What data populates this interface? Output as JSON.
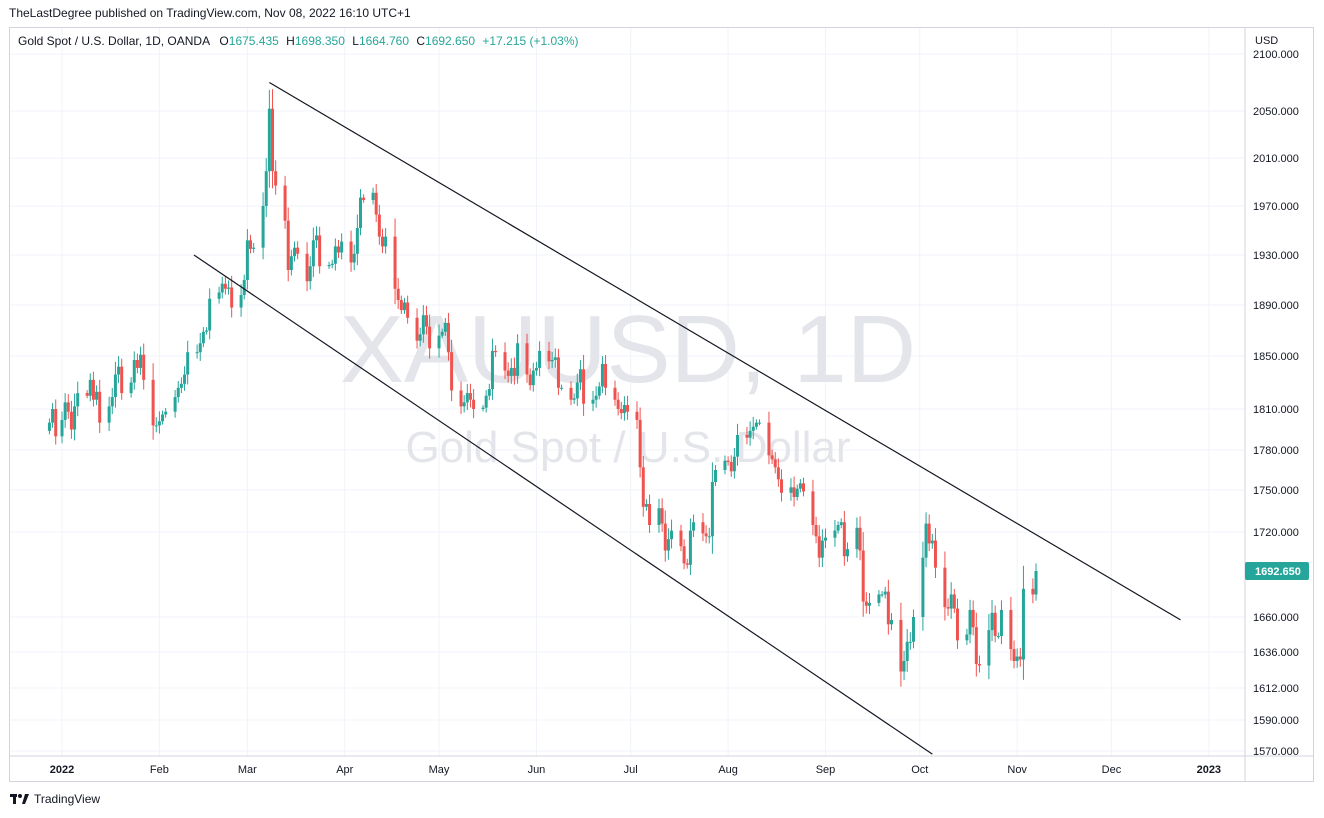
{
  "publisher": "TheLastDegree published on TradingView.com, Nov 08, 2022 16:10 UTC+1",
  "legend": {
    "symbol": "Gold Spot / U.S. Dollar, 1D, OANDA",
    "o_label": "O",
    "o_value": "1675.435",
    "h_label": "H",
    "h_value": "1698.350",
    "l_label": "L",
    "l_value": "1664.760",
    "c_label": "C",
    "c_value": "1692.650",
    "change": "+17.215 (+1.03%)"
  },
  "watermark": {
    "ticker": "XAUUSD, 1D",
    "name": "Gold Spot / U.S. Dollar"
  },
  "footer": {
    "brand": "TradingView"
  },
  "colors": {
    "up": "#26a69a",
    "down": "#ef5350",
    "price_tag": "#26a69a",
    "grid": "#f0f3fa",
    "trendline": "#131722"
  },
  "chart_data": {
    "type": "candlestick",
    "currency": "USD",
    "last_price": 1692.65,
    "y_ticks": [
      "2100.000",
      "2050.000",
      "2010.000",
      "1970.000",
      "1930.000",
      "1890.000",
      "1850.000",
      "1810.000",
      "1780.000",
      "1750.000",
      "1720.000",
      "1660.000",
      "1636.000",
      "1612.000",
      "1590.000",
      "1570.000"
    ],
    "x_labels": [
      {
        "label": "2022",
        "t": 0
      },
      {
        "label": "Feb",
        "t": 31
      },
      {
        "label": "Mar",
        "t": 59
      },
      {
        "label": "Apr",
        "t": 90
      },
      {
        "label": "May",
        "t": 120
      },
      {
        "label": "Jun",
        "t": 151
      },
      {
        "label": "Jul",
        "t": 181
      },
      {
        "label": "Aug",
        "t": 212
      },
      {
        "label": "Sep",
        "t": 243
      },
      {
        "label": "Oct",
        "t": 273
      },
      {
        "label": "Nov",
        "t": 304
      },
      {
        "label": "Dec",
        "t": 334
      },
      {
        "label": "2023",
        "t": 365
      }
    ],
    "trendlines": [
      {
        "name": "upper",
        "t1": 66,
        "p1": 2075,
        "t2": 356,
        "p2": 1658
      },
      {
        "name": "lower",
        "t1": 42,
        "p1": 1930,
        "t2": 277,
        "p2": 1568
      }
    ],
    "closes": [
      [
        -4,
        1800
      ],
      [
        -3,
        1810
      ],
      [
        -2,
        1790
      ],
      [
        0,
        1802
      ],
      [
        1,
        1815
      ],
      [
        2,
        1808
      ],
      [
        3,
        1795
      ],
      [
        4,
        1812
      ],
      [
        5,
        1822
      ],
      [
        8,
        1820
      ],
      [
        9,
        1832
      ],
      [
        10,
        1817
      ],
      [
        11,
        1823
      ],
      [
        12,
        1800
      ],
      [
        15,
        1812
      ],
      [
        16,
        1819
      ],
      [
        17,
        1836
      ],
      [
        18,
        1842
      ],
      [
        19,
        1822
      ],
      [
        22,
        1830
      ],
      [
        23,
        1847
      ],
      [
        24,
        1841
      ],
      [
        25,
        1851
      ],
      [
        26,
        1832
      ],
      [
        29,
        1798
      ],
      [
        30,
        1798
      ],
      [
        31,
        1801
      ],
      [
        32,
        1806
      ],
      [
        33,
        1808
      ],
      [
        36,
        1819
      ],
      [
        37,
        1826
      ],
      [
        38,
        1829
      ],
      [
        39,
        1836
      ],
      [
        40,
        1853
      ],
      [
        43,
        1853
      ],
      [
        44,
        1860
      ],
      [
        45,
        1869
      ],
      [
        46,
        1870
      ],
      [
        47,
        1895
      ],
      [
        50,
        1900
      ],
      [
        51,
        1907
      ],
      [
        52,
        1903
      ],
      [
        53,
        1904
      ],
      [
        54,
        1888
      ],
      [
        57,
        1898
      ],
      [
        58,
        1910
      ],
      [
        59,
        1942
      ],
      [
        60,
        1935
      ],
      [
        61,
        1936
      ],
      [
        64,
        1970
      ],
      [
        65,
        1999
      ],
      [
        66,
        2052
      ],
      [
        67,
        1999
      ],
      [
        68,
        1987
      ],
      [
        71,
        1958
      ],
      [
        72,
        1918
      ],
      [
        73,
        1929
      ],
      [
        74,
        1936
      ],
      [
        75,
        1931
      ],
      [
        78,
        1909
      ],
      [
        79,
        1921
      ],
      [
        80,
        1942
      ],
      [
        81,
        1946
      ],
      [
        82,
        1921
      ],
      [
        85,
        1922
      ],
      [
        86,
        1923
      ],
      [
        87,
        1937
      ],
      [
        88,
        1932
      ],
      [
        89,
        1941
      ],
      [
        92,
        1924
      ],
      [
        93,
        1931
      ],
      [
        94,
        1952
      ],
      [
        95,
        1977
      ],
      [
        96,
        1975
      ],
      [
        99,
        1981
      ],
      [
        100,
        1963
      ],
      [
        101,
        1945
      ],
      [
        102,
        1937
      ],
      [
        103,
        1945
      ],
      [
        106,
        1903
      ],
      [
        107,
        1894
      ],
      [
        108,
        1886
      ],
      [
        109,
        1892
      ],
      [
        110,
        1880
      ],
      [
        113,
        1862
      ],
      [
        114,
        1867
      ],
      [
        115,
        1882
      ],
      [
        116,
        1873
      ],
      [
        117,
        1856
      ],
      [
        120,
        1866
      ],
      [
        121,
        1869
      ],
      [
        122,
        1876
      ],
      [
        123,
        1853
      ],
      [
        124,
        1824
      ],
      [
        127,
        1812
      ],
      [
        128,
        1815
      ],
      [
        129,
        1822
      ],
      [
        130,
        1817
      ],
      [
        131,
        1810
      ],
      [
        134,
        1811
      ],
      [
        135,
        1820
      ],
      [
        136,
        1825
      ],
      [
        137,
        1854
      ],
      [
        138,
        1853
      ],
      [
        141,
        1839
      ],
      [
        142,
        1835
      ],
      [
        143,
        1841
      ],
      [
        144,
        1835
      ],
      [
        145,
        1860
      ],
      [
        148,
        1836
      ],
      [
        149,
        1828
      ],
      [
        150,
        1839
      ],
      [
        151,
        1841
      ],
      [
        152,
        1854
      ],
      [
        155,
        1846
      ],
      [
        156,
        1847
      ],
      [
        157,
        1849
      ],
      [
        158,
        1826
      ],
      [
        159,
        1826
      ],
      [
        162,
        1817
      ],
      [
        163,
        1818
      ],
      [
        164,
        1830
      ],
      [
        165,
        1840
      ],
      [
        166,
        1814
      ],
      [
        169,
        1817
      ],
      [
        170,
        1820
      ],
      [
        171,
        1827
      ],
      [
        172,
        1844
      ],
      [
        173,
        1826
      ],
      [
        176,
        1817
      ],
      [
        177,
        1810
      ],
      [
        178,
        1807
      ],
      [
        179,
        1813
      ],
      [
        180,
        1808
      ],
      [
        183,
        1802
      ],
      [
        184,
        1767
      ],
      [
        185,
        1738
      ],
      [
        186,
        1740
      ],
      [
        187,
        1725
      ],
      [
        190,
        1737
      ],
      [
        191,
        1726
      ],
      [
        192,
        1707
      ],
      [
        193,
        1715
      ],
      [
        194,
        1721
      ],
      [
        197,
        1710
      ],
      [
        198,
        1698
      ],
      [
        199,
        1697
      ],
      [
        200,
        1721
      ],
      [
        201,
        1727
      ],
      [
        204,
        1719
      ],
      [
        205,
        1717
      ],
      [
        206,
        1717
      ],
      [
        207,
        1756
      ],
      [
        208,
        1765
      ],
      [
        211,
        1772
      ],
      [
        212,
        1771
      ],
      [
        213,
        1764
      ],
      [
        214,
        1775
      ],
      [
        215,
        1791
      ],
      [
        218,
        1789
      ],
      [
        219,
        1794
      ],
      [
        220,
        1797
      ],
      [
        221,
        1800
      ],
      [
        222,
        1800
      ],
      [
        225,
        1776
      ],
      [
        226,
        1773
      ],
      [
        227,
        1767
      ],
      [
        228,
        1758
      ],
      [
        229,
        1748
      ],
      [
        232,
        1752
      ],
      [
        233,
        1745
      ],
      [
        234,
        1751
      ],
      [
        235,
        1755
      ],
      [
        236,
        1749
      ],
      [
        239,
        1725
      ],
      [
        240,
        1717
      ],
      [
        241,
        1702
      ],
      [
        242,
        1714
      ],
      [
        243,
        1716
      ],
      [
        246,
        1721
      ],
      [
        247,
        1725
      ],
      [
        248,
        1727
      ],
      [
        249,
        1703
      ],
      [
        250,
        1708
      ],
      [
        253,
        1723
      ],
      [
        254,
        1707
      ],
      [
        255,
        1671
      ],
      [
        256,
        1668
      ],
      [
        257,
        1670
      ],
      [
        260,
        1676
      ],
      [
        261,
        1676
      ],
      [
        262,
        1678
      ],
      [
        263,
        1655
      ],
      [
        264,
        1658
      ],
      [
        267,
        1623
      ],
      [
        268,
        1630
      ],
      [
        269,
        1643
      ],
      [
        270,
        1643
      ],
      [
        271,
        1660
      ],
      [
        274,
        1702
      ],
      [
        275,
        1726
      ],
      [
        276,
        1712
      ],
      [
        277,
        1714
      ],
      [
        278,
        1695
      ],
      [
        281,
        1667
      ],
      [
        282,
        1666
      ],
      [
        283,
        1676
      ],
      [
        284,
        1666
      ],
      [
        285,
        1644
      ],
      [
        288,
        1648
      ],
      [
        289,
        1665
      ],
      [
        290,
        1653
      ],
      [
        291,
        1628
      ],
      [
        292,
        1627
      ],
      [
        295,
        1651
      ],
      [
        296,
        1663
      ],
      [
        297,
        1647
      ],
      [
        298,
        1647
      ],
      [
        299,
        1665
      ],
      [
        302,
        1638
      ],
      [
        303,
        1630
      ],
      [
        304,
        1633
      ],
      [
        305,
        1631
      ],
      [
        306,
        1680
      ],
      [
        309,
        1676
      ],
      [
        310,
        1692.65
      ]
    ]
  }
}
